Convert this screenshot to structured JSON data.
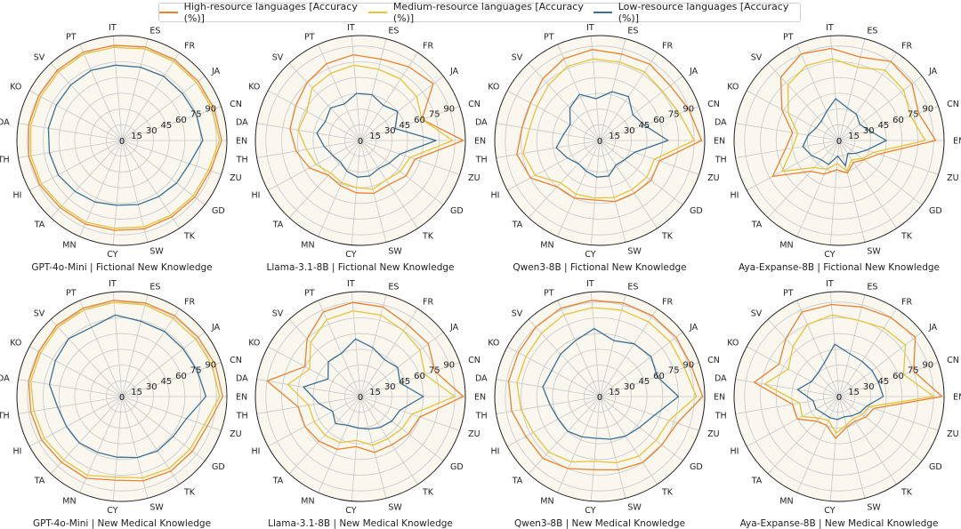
{
  "colors": {
    "high": "#E8822F",
    "medium": "#E6C33A",
    "low": "#3C6E91",
    "fill": "#F9F7EE",
    "grid": "#C8C8C8"
  },
  "legend": [
    {
      "label": "High-resource languages [Accuracy (%)]",
      "color": "#E8822F"
    },
    {
      "label": "Medium-resource languages [Accuracy (%)]",
      "color": "#E6C33A"
    },
    {
      "label": "Low-resource languages [Accuracy (%)]",
      "color": "#3C6E91"
    }
  ],
  "chart_data": [
    {
      "type": "radar",
      "title": "GPT-4o-Mini | Fictional New Knowledge",
      "categories": [
        "EN",
        "CN",
        "JA",
        "FR",
        "ES",
        "IT",
        "PT",
        "SV",
        "KO",
        "DA",
        "TH",
        "HI",
        "TA",
        "MN",
        "CY",
        "SW",
        "TK",
        "GD",
        "ZU"
      ],
      "rlim": [
        0,
        100
      ],
      "rticks": [
        0,
        15,
        30,
        45,
        60,
        75,
        90
      ],
      "series": [
        {
          "name": "High-resource languages [Accuracy (%)]",
          "values": [
            95,
            93,
            92,
            92,
            92,
            91,
            92,
            91,
            90,
            90,
            90,
            89,
            87,
            87,
            86,
            87,
            87,
            88,
            89
          ]
        },
        {
          "name": "Medium-resource languages [Accuracy (%)]",
          "values": [
            93,
            91,
            90,
            90,
            90,
            89,
            90,
            89,
            88,
            88,
            88,
            87,
            85,
            85,
            84,
            85,
            85,
            86,
            87
          ]
        },
        {
          "name": "Low-resource languages [Accuracy (%)]",
          "values": [
            77,
            75,
            73,
            73,
            72,
            72,
            73,
            72,
            71,
            71,
            70,
            69,
            66,
            64,
            62,
            63,
            64,
            66,
            68
          ]
        }
      ]
    },
    {
      "type": "radar",
      "title": "Llama-3.1-8B | Fictional New Knowledge",
      "categories": [
        "EN",
        "CN",
        "JA",
        "FR",
        "ES",
        "IT",
        "PT",
        "SV",
        "KO",
        "DA",
        "TH",
        "HI",
        "TA",
        "MN",
        "CY",
        "SW",
        "TK",
        "GD",
        "ZU"
      ],
      "rlim": [
        0,
        100
      ],
      "rticks": [
        0,
        15,
        30,
        45,
        60,
        75,
        90
      ],
      "series": [
        {
          "name": "High-resource languages [Accuracy (%)]",
          "values": [
            98,
            62,
            88,
            84,
            80,
            82,
            80,
            75,
            70,
            68,
            62,
            55,
            45,
            47,
            50,
            52,
            50,
            55,
            55
          ]
        },
        {
          "name": "Medium-resource languages [Accuracy (%)]",
          "values": [
            88,
            62,
            68,
            70,
            70,
            72,
            70,
            68,
            58,
            60,
            52,
            48,
            42,
            44,
            45,
            48,
            45,
            48,
            50
          ]
        },
        {
          "name": "Low-resource languages [Accuracy (%)]",
          "values": [
            72,
            35,
            45,
            40,
            45,
            45,
            38,
            42,
            38,
            42,
            35,
            30,
            28,
            32,
            35,
            35,
            32,
            35,
            40
          ]
        }
      ]
    },
    {
      "type": "radar",
      "title": "Qwen3-8B | Fictional New Knowledge",
      "categories": [
        "EN",
        "CN",
        "JA",
        "FR",
        "ES",
        "IT",
        "PT",
        "SV",
        "KO",
        "DA",
        "TH",
        "HI",
        "TA",
        "MN",
        "CY",
        "SW",
        "TK",
        "GD",
        "ZU"
      ],
      "rlim": [
        0,
        100
      ],
      "rticks": [
        0,
        15,
        30,
        45,
        60,
        75,
        90
      ],
      "series": [
        {
          "name": "High-resource languages [Accuracy (%)]",
          "values": [
            97,
            90,
            85,
            87,
            85,
            87,
            85,
            80,
            75,
            75,
            80,
            75,
            60,
            60,
            57,
            60,
            60,
            62,
            60
          ]
        },
        {
          "name": "Medium-resource languages [Accuracy (%)]",
          "values": [
            90,
            80,
            76,
            78,
            77,
            78,
            77,
            72,
            68,
            68,
            74,
            70,
            55,
            56,
            55,
            56,
            56,
            57,
            55
          ]
        },
        {
          "name": "Low-resource languages [Accuracy (%)]",
          "values": [
            65,
            45,
            40,
            50,
            48,
            40,
            48,
            42,
            32,
            35,
            42,
            35,
            30,
            32,
            35,
            35,
            28,
            30,
            35
          ]
        }
      ]
    },
    {
      "type": "radar",
      "title": "Aya-Expanse-8B | Fictional New Knowledge",
      "categories": [
        "EN",
        "CN",
        "JA",
        "FR",
        "ES",
        "IT",
        "PT",
        "SV",
        "KO",
        "DA",
        "TH",
        "HI",
        "TA",
        "MN",
        "CY",
        "SW",
        "TK",
        "GD",
        "ZU"
      ],
      "rlim": [
        0,
        100
      ],
      "rticks": [
        0,
        15,
        30,
        45,
        60,
        75,
        90
      ],
      "series": [
        {
          "name": "High-resource languages [Accuracy (%)]",
          "values": [
            92,
            80,
            88,
            90,
            82,
            88,
            90,
            82,
            62,
            45,
            52,
            72,
            40,
            35,
            28,
            32,
            25,
            30,
            40
          ]
        },
        {
          "name": "Medium-resource languages [Accuracy (%)]",
          "values": [
            82,
            72,
            78,
            80,
            72,
            78,
            78,
            72,
            55,
            40,
            45,
            62,
            35,
            30,
            22,
            30,
            22,
            28,
            35
          ]
        },
        {
          "name": "Low-resource languages [Accuracy (%)]",
          "values": [
            45,
            30,
            25,
            30,
            32,
            40,
            30,
            25,
            25,
            30,
            35,
            30,
            25,
            25,
            15,
            25,
            15,
            20,
            28
          ]
        }
      ]
    },
    {
      "type": "radar",
      "title": "GPT-4o-Mini | New Medical Knowledge",
      "categories": [
        "EN",
        "CN",
        "JA",
        "FR",
        "ES",
        "IT",
        "PT",
        "SV",
        "KO",
        "DA",
        "TH",
        "HI",
        "TA",
        "MN",
        "CY",
        "SW",
        "TK",
        "GD",
        "ZU"
      ],
      "rlim": [
        0,
        100
      ],
      "rticks": [
        0,
        15,
        30,
        45,
        60,
        75,
        90
      ],
      "series": [
        {
          "name": "High-resource languages [Accuracy (%)]",
          "values": [
            96,
            94,
            92,
            92,
            92,
            92,
            92,
            92,
            90,
            90,
            88,
            87,
            85,
            85,
            80,
            83,
            85,
            85,
            86
          ]
        },
        {
          "name": "Medium-resource languages [Accuracy (%)]",
          "values": [
            93,
            91,
            89,
            89,
            90,
            90,
            90,
            90,
            88,
            88,
            85,
            84,
            82,
            82,
            77,
            80,
            82,
            82,
            83
          ]
        },
        {
          "name": "Low-resource languages [Accuracy (%)]",
          "values": [
            80,
            76,
            74,
            74,
            74,
            78,
            72,
            75,
            72,
            70,
            62,
            60,
            60,
            58,
            58,
            60,
            62,
            62,
            65
          ]
        }
      ]
    },
    {
      "type": "radar",
      "title": "Llama-3.1-8B | New Medical Knowledge",
      "categories": [
        "EN",
        "CN",
        "JA",
        "FR",
        "ES",
        "IT",
        "PT",
        "SV",
        "KO",
        "DA",
        "TH",
        "HI",
        "TA",
        "MN",
        "CY",
        "SW",
        "TK",
        "GD",
        "ZU"
      ],
      "rlim": [
        0,
        100
      ],
      "rticks": [
        0,
        15,
        30,
        45,
        60,
        75,
        90
      ],
      "series": [
        {
          "name": "High-resource languages [Accuracy (%)]",
          "values": [
            98,
            75,
            82,
            82,
            88,
            90,
            88,
            75,
            60,
            90,
            60,
            60,
            58,
            55,
            48,
            55,
            55,
            58,
            60
          ]
        },
        {
          "name": "Medium-resource languages [Accuracy (%)]",
          "values": [
            90,
            65,
            72,
            75,
            80,
            82,
            80,
            70,
            55,
            70,
            50,
            50,
            50,
            48,
            42,
            48,
            48,
            50,
            52
          ]
        },
        {
          "name": "Low-resource languages [Accuracy (%)]",
          "values": [
            60,
            40,
            45,
            42,
            48,
            55,
            45,
            45,
            35,
            55,
            40,
            30,
            35,
            30,
            30,
            32,
            35,
            38,
            40
          ]
        }
      ]
    },
    {
      "type": "radar",
      "title": "Qwen3-8B | New Medical Knowledge",
      "categories": [
        "EN",
        "CN",
        "JA",
        "FR",
        "ES",
        "IT",
        "PT",
        "SV",
        "KO",
        "DA",
        "TH",
        "HI",
        "TA",
        "MN",
        "CY",
        "SW",
        "TK",
        "GD",
        "ZU"
      ],
      "rlim": [
        0,
        100
      ],
      "rticks": [
        0,
        15,
        30,
        45,
        60,
        75,
        90
      ],
      "series": [
        {
          "name": "High-resource languages [Accuracy (%)]",
          "values": [
            98,
            92,
            92,
            92,
            92,
            92,
            92,
            90,
            88,
            88,
            85,
            80,
            80,
            75,
            70,
            72,
            75,
            75,
            78
          ]
        },
        {
          "name": "Medium-resource languages [Accuracy (%)]",
          "values": [
            92,
            85,
            85,
            85,
            85,
            85,
            85,
            82,
            80,
            80,
            76,
            72,
            72,
            68,
            62,
            65,
            68,
            68,
            70
          ]
        },
        {
          "name": "Low-resource languages [Accuracy (%)]",
          "values": [
            75,
            58,
            62,
            60,
            55,
            65,
            58,
            55,
            52,
            55,
            48,
            45,
            45,
            42,
            40,
            42,
            45,
            48,
            55
          ]
        }
      ]
    },
    {
      "type": "radar",
      "title": "Aya-Expanse-8B | New Medical Knowledge",
      "categories": [
        "EN",
        "CN",
        "JA",
        "FR",
        "ES",
        "IT",
        "PT",
        "SV",
        "KO",
        "DA",
        "TH",
        "HI",
        "TA",
        "MN",
        "CY",
        "SW",
        "TK",
        "GD",
        "ZU"
      ],
      "rlim": [
        0,
        100
      ],
      "rticks": [
        0,
        15,
        30,
        45,
        60,
        75,
        90
      ],
      "series": [
        {
          "name": "High-resource languages [Accuracy (%)]",
          "values": [
            98,
            75,
            92,
            90,
            88,
            88,
            88,
            75,
            65,
            82,
            45,
            45,
            32,
            30,
            40,
            30,
            28,
            32,
            35
          ]
        },
        {
          "name": "Medium-resource languages [Accuracy (%)]",
          "values": [
            90,
            65,
            80,
            78,
            75,
            78,
            75,
            65,
            55,
            72,
            38,
            40,
            28,
            25,
            35,
            28,
            25,
            28,
            30
          ]
        },
        {
          "name": "Low-resource languages [Accuracy (%)]",
          "values": [
            42,
            40,
            40,
            40,
            42,
            50,
            35,
            30,
            30,
            40,
            25,
            25,
            22,
            22,
            22,
            20,
            22,
            25,
            28
          ]
        }
      ]
    }
  ]
}
